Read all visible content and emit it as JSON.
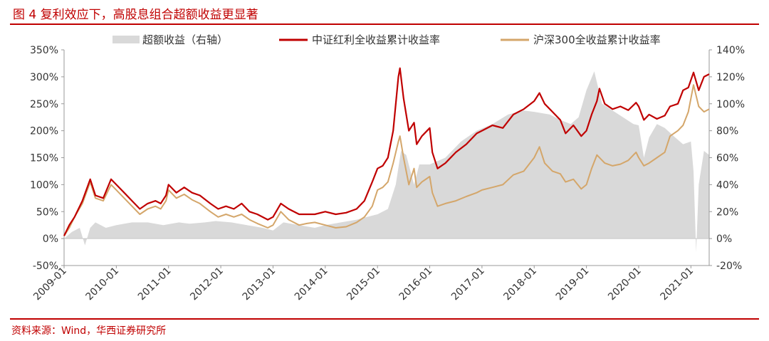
{
  "figure": {
    "title": "图 4  复利效应下，高股息组合超额收益更显著",
    "source": "资料来源：Wind，华西证券研究所"
  },
  "colors": {
    "accent": "#c00000",
    "excess_area": "#d9d9d9",
    "dividend_line": "#c00000",
    "hs300_line": "#d4a66a",
    "axis_text": "#333333"
  },
  "chart_data": {
    "type": "line",
    "legend_position": "top",
    "grid": false,
    "y_left": {
      "min": -50,
      "max": 350,
      "step": 50,
      "ticks": [
        "-50%",
        "0%",
        "50%",
        "100%",
        "150%",
        "200%",
        "250%",
        "300%",
        "350%"
      ]
    },
    "y_right": {
      "min": -20,
      "max": 140,
      "step": 20,
      "ticks": [
        "-20%",
        "0%",
        "20%",
        "40%",
        "60%",
        "80%",
        "100%",
        "120%",
        "140%"
      ]
    },
    "x_ticks": [
      "2009-01",
      "2010-01",
      "2011-01",
      "2012-01",
      "2013-01",
      "2014-01",
      "2015-01",
      "2016-01",
      "2017-01",
      "2018-01",
      "2019-01",
      "2020-01",
      "2021-01"
    ],
    "x_range": [
      2009.0,
      2021.35
    ],
    "series": [
      {
        "name": "超额收益（右轴）",
        "kind": "area",
        "axis": "right",
        "points": [
          [
            2009.0,
            0
          ],
          [
            2009.15,
            5
          ],
          [
            2009.3,
            8
          ],
          [
            2009.4,
            -5
          ],
          [
            2009.5,
            8
          ],
          [
            2009.6,
            12
          ],
          [
            2009.8,
            8
          ],
          [
            2010.0,
            10
          ],
          [
            2010.3,
            12
          ],
          [
            2010.6,
            12
          ],
          [
            2010.9,
            10
          ],
          [
            2011.2,
            12
          ],
          [
            2011.4,
            11
          ],
          [
            2011.7,
            12
          ],
          [
            2011.9,
            13
          ],
          [
            2012.2,
            12
          ],
          [
            2012.5,
            10
          ],
          [
            2012.8,
            8
          ],
          [
            2013.0,
            6
          ],
          [
            2013.2,
            12
          ],
          [
            2013.5,
            10
          ],
          [
            2013.8,
            8
          ],
          [
            2014.0,
            10
          ],
          [
            2014.3,
            12
          ],
          [
            2014.6,
            14
          ],
          [
            2014.8,
            16
          ],
          [
            2015.0,
            18
          ],
          [
            2015.2,
            22
          ],
          [
            2015.35,
            40
          ],
          [
            2015.45,
            65
          ],
          [
            2015.55,
            62
          ],
          [
            2015.7,
            40
          ],
          [
            2015.8,
            55
          ],
          [
            2016.0,
            55
          ],
          [
            2016.3,
            60
          ],
          [
            2016.6,
            72
          ],
          [
            2016.9,
            80
          ],
          [
            2017.2,
            85
          ],
          [
            2017.5,
            92
          ],
          [
            2017.8,
            95
          ],
          [
            2018.0,
            94
          ],
          [
            2018.3,
            92
          ],
          [
            2018.5,
            88
          ],
          [
            2018.7,
            85
          ],
          [
            2018.85,
            90
          ],
          [
            2019.0,
            110
          ],
          [
            2019.15,
            124
          ],
          [
            2019.3,
            100
          ],
          [
            2019.5,
            95
          ],
          [
            2019.7,
            90
          ],
          [
            2019.9,
            85
          ],
          [
            2020.0,
            84
          ],
          [
            2020.1,
            60
          ],
          [
            2020.2,
            75
          ],
          [
            2020.35,
            85
          ],
          [
            2020.5,
            82
          ],
          [
            2020.7,
            75
          ],
          [
            2020.85,
            70
          ],
          [
            2021.0,
            72
          ],
          [
            2021.05,
            50
          ],
          [
            2021.1,
            -10
          ],
          [
            2021.15,
            40
          ],
          [
            2021.25,
            65
          ],
          [
            2021.35,
            62
          ]
        ]
      },
      {
        "name": "中证红利全收益累计收益率",
        "kind": "line",
        "axis": "left",
        "points": [
          [
            2009.0,
            5
          ],
          [
            2009.1,
            25
          ],
          [
            2009.2,
            40
          ],
          [
            2009.35,
            70
          ],
          [
            2009.5,
            110
          ],
          [
            2009.6,
            80
          ],
          [
            2009.75,
            75
          ],
          [
            2009.9,
            110
          ],
          [
            2010.0,
            100
          ],
          [
            2010.15,
            85
          ],
          [
            2010.3,
            70
          ],
          [
            2010.45,
            55
          ],
          [
            2010.6,
            65
          ],
          [
            2010.75,
            70
          ],
          [
            2010.85,
            65
          ],
          [
            2010.95,
            80
          ],
          [
            2011.0,
            100
          ],
          [
            2011.15,
            85
          ],
          [
            2011.3,
            95
          ],
          [
            2011.45,
            85
          ],
          [
            2011.6,
            80
          ],
          [
            2011.8,
            65
          ],
          [
            2011.95,
            55
          ],
          [
            2012.1,
            60
          ],
          [
            2012.25,
            55
          ],
          [
            2012.4,
            65
          ],
          [
            2012.55,
            50
          ],
          [
            2012.7,
            45
          ],
          [
            2012.9,
            35
          ],
          [
            2013.0,
            40
          ],
          [
            2013.15,
            65
          ],
          [
            2013.3,
            55
          ],
          [
            2013.5,
            45
          ],
          [
            2013.65,
            45
          ],
          [
            2013.8,
            45
          ],
          [
            2014.0,
            50
          ],
          [
            2014.2,
            45
          ],
          [
            2014.4,
            48
          ],
          [
            2014.6,
            55
          ],
          [
            2014.75,
            70
          ],
          [
            2014.9,
            105
          ],
          [
            2015.0,
            130
          ],
          [
            2015.1,
            135
          ],
          [
            2015.2,
            150
          ],
          [
            2015.3,
            200
          ],
          [
            2015.4,
            300
          ],
          [
            2015.43,
            316
          ],
          [
            2015.5,
            260
          ],
          [
            2015.6,
            200
          ],
          [
            2015.7,
            215
          ],
          [
            2015.75,
            175
          ],
          [
            2015.85,
            190
          ],
          [
            2016.0,
            205
          ],
          [
            2016.05,
            160
          ],
          [
            2016.15,
            130
          ],
          [
            2016.3,
            140
          ],
          [
            2016.5,
            160
          ],
          [
            2016.7,
            175
          ],
          [
            2016.9,
            195
          ],
          [
            2017.0,
            200
          ],
          [
            2017.2,
            210
          ],
          [
            2017.4,
            205
          ],
          [
            2017.6,
            230
          ],
          [
            2017.8,
            240
          ],
          [
            2018.0,
            255
          ],
          [
            2018.1,
            270
          ],
          [
            2018.2,
            250
          ],
          [
            2018.35,
            235
          ],
          [
            2018.5,
            220
          ],
          [
            2018.6,
            195
          ],
          [
            2018.75,
            210
          ],
          [
            2018.9,
            190
          ],
          [
            2019.0,
            200
          ],
          [
            2019.1,
            230
          ],
          [
            2019.2,
            255
          ],
          [
            2019.25,
            278
          ],
          [
            2019.35,
            250
          ],
          [
            2019.5,
            240
          ],
          [
            2019.65,
            245
          ],
          [
            2019.8,
            238
          ],
          [
            2019.95,
            252
          ],
          [
            2020.0,
            245
          ],
          [
            2020.1,
            220
          ],
          [
            2020.2,
            230
          ],
          [
            2020.35,
            222
          ],
          [
            2020.5,
            228
          ],
          [
            2020.6,
            245
          ],
          [
            2020.75,
            250
          ],
          [
            2020.85,
            275
          ],
          [
            2020.95,
            280
          ],
          [
            2021.05,
            308
          ],
          [
            2021.15,
            275
          ],
          [
            2021.25,
            300
          ],
          [
            2021.35,
            305
          ]
        ]
      },
      {
        "name": "沪深300全收益累计收益率",
        "kind": "line",
        "axis": "left",
        "points": [
          [
            2009.0,
            5
          ],
          [
            2009.1,
            20
          ],
          [
            2009.2,
            40
          ],
          [
            2009.35,
            65
          ],
          [
            2009.5,
            105
          ],
          [
            2009.6,
            75
          ],
          [
            2009.75,
            70
          ],
          [
            2009.9,
            100
          ],
          [
            2010.0,
            90
          ],
          [
            2010.15,
            75
          ],
          [
            2010.3,
            60
          ],
          [
            2010.45,
            45
          ],
          [
            2010.6,
            55
          ],
          [
            2010.75,
            60
          ],
          [
            2010.85,
            55
          ],
          [
            2010.95,
            70
          ],
          [
            2011.0,
            90
          ],
          [
            2011.15,
            75
          ],
          [
            2011.3,
            82
          ],
          [
            2011.45,
            72
          ],
          [
            2011.6,
            65
          ],
          [
            2011.8,
            50
          ],
          [
            2011.95,
            40
          ],
          [
            2012.1,
            45
          ],
          [
            2012.25,
            40
          ],
          [
            2012.4,
            45
          ],
          [
            2012.55,
            35
          ],
          [
            2012.7,
            28
          ],
          [
            2012.9,
            20
          ],
          [
            2013.0,
            25
          ],
          [
            2013.15,
            50
          ],
          [
            2013.3,
            35
          ],
          [
            2013.5,
            25
          ],
          [
            2013.65,
            28
          ],
          [
            2013.8,
            30
          ],
          [
            2014.0,
            25
          ],
          [
            2014.2,
            20
          ],
          [
            2014.4,
            22
          ],
          [
            2014.6,
            30
          ],
          [
            2014.75,
            40
          ],
          [
            2014.9,
            60
          ],
          [
            2015.0,
            90
          ],
          [
            2015.1,
            95
          ],
          [
            2015.2,
            105
          ],
          [
            2015.3,
            140
          ],
          [
            2015.4,
            180
          ],
          [
            2015.43,
            190
          ],
          [
            2015.5,
            150
          ],
          [
            2015.6,
            100
          ],
          [
            2015.7,
            130
          ],
          [
            2015.75,
            95
          ],
          [
            2015.85,
            105
          ],
          [
            2016.0,
            115
          ],
          [
            2016.05,
            85
          ],
          [
            2016.15,
            60
          ],
          [
            2016.3,
            65
          ],
          [
            2016.5,
            70
          ],
          [
            2016.7,
            78
          ],
          [
            2016.9,
            85
          ],
          [
            2017.0,
            90
          ],
          [
            2017.2,
            95
          ],
          [
            2017.4,
            100
          ],
          [
            2017.6,
            118
          ],
          [
            2017.8,
            125
          ],
          [
            2018.0,
            150
          ],
          [
            2018.1,
            170
          ],
          [
            2018.2,
            140
          ],
          [
            2018.35,
            125
          ],
          [
            2018.5,
            120
          ],
          [
            2018.6,
            105
          ],
          [
            2018.75,
            110
          ],
          [
            2018.9,
            92
          ],
          [
            2019.0,
            100
          ],
          [
            2019.1,
            130
          ],
          [
            2019.2,
            155
          ],
          [
            2019.35,
            140
          ],
          [
            2019.5,
            135
          ],
          [
            2019.65,
            138
          ],
          [
            2019.8,
            145
          ],
          [
            2019.95,
            160
          ],
          [
            2020.0,
            150
          ],
          [
            2020.1,
            135
          ],
          [
            2020.2,
            140
          ],
          [
            2020.35,
            150
          ],
          [
            2020.5,
            160
          ],
          [
            2020.6,
            190
          ],
          [
            2020.75,
            200
          ],
          [
            2020.85,
            210
          ],
          [
            2020.95,
            235
          ],
          [
            2021.05,
            285
          ],
          [
            2021.15,
            245
          ],
          [
            2021.25,
            235
          ],
          [
            2021.35,
            240
          ]
        ]
      }
    ]
  }
}
